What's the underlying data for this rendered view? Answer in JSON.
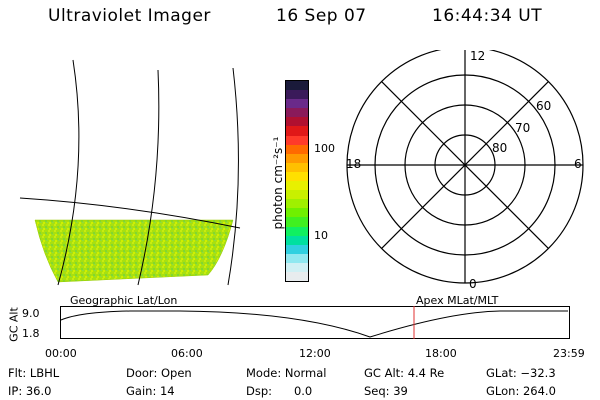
{
  "header": {
    "instrument": "Ultraviolet Imager",
    "date": "16 Sep 07",
    "time": "16:44:34 UT"
  },
  "colorbar": {
    "unit_label": "photon cm⁻²s⁻¹",
    "ticks": [
      "100",
      "10"
    ],
    "colors": [
      "#1a1a3a",
      "#3a1a5a",
      "#6a2a8a",
      "#8a1a5a",
      "#b01030",
      "#e01818",
      "#ff3a2a",
      "#ff6a00",
      "#ff9a00",
      "#ffc000",
      "#ffe000",
      "#e8f000",
      "#c8f000",
      "#a0f000",
      "#70f000",
      "#40f020",
      "#10f060",
      "#00e0a0",
      "#30d0e0",
      "#90e8f0",
      "#d0f0f4",
      "#e8ecee"
    ]
  },
  "polar_plot": {
    "mlt_labels": {
      "top": "12",
      "left": "18",
      "right": "6",
      "bottom": "0"
    },
    "lat_labels": [
      "60",
      "70",
      "80"
    ]
  },
  "timeline": {
    "left_label": "Geographic Lat/Lon",
    "right_label": "Apex MLat/MLT",
    "y_axis_label": "GC Alt",
    "y_ticks": [
      "9.0",
      "1.8"
    ],
    "x_ticks": [
      "00:00",
      "06:00",
      "12:00",
      "18:00",
      "23:59"
    ],
    "current_time_marker_color": "#e03030"
  },
  "info": {
    "flt": "Flt: LBHL",
    "ip": "IP: 36.0",
    "door": "Door: Open",
    "gain": "Gain: 14",
    "mode": "Mode: Normal",
    "dsp": "Dsp:      0.0",
    "gcalt": "GC Alt: 4.4 Re",
    "seq": "Seq: 39",
    "glat": "GLat: −32.3",
    "glon": "GLon: 264.0"
  }
}
